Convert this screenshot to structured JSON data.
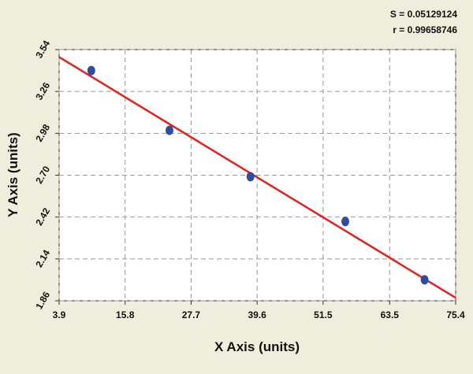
{
  "chart_data": {
    "type": "scatter",
    "annotations": [
      "S = 0.05129124",
      "r = 0.99658746"
    ],
    "x_label": "X Axis (units)",
    "y_label": "Y Axis (units)",
    "series": [
      {
        "x": [
          9.7,
          23.8,
          38.4,
          55.5,
          69.8
        ],
        "values": [
          3.4,
          3.0,
          2.69,
          2.39,
          2.0
        ],
        "color": "#2f4da0"
      }
    ],
    "fit": {
      "x": [
        3.9,
        75.4
      ],
      "y": [
        3.49,
        1.88
      ],
      "color": "#e8201c"
    },
    "xlim": [
      3.9,
      75.4
    ],
    "xticks": [
      3.9,
      15.8,
      27.7,
      39.6,
      51.5,
      63.5,
      75.4
    ],
    "ylim": [
      1.86,
      3.54
    ],
    "yticks": [
      1.86,
      2.14,
      2.42,
      {
        "value": 2.7,
        "label": "2.70"
      },
      2.98,
      3.26,
      3.54
    ],
    "grid": true
  }
}
